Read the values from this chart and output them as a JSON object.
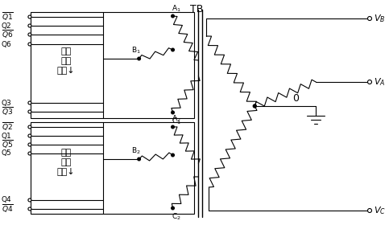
{
  "title": "TB",
  "background": "#ffffff",
  "line_color": "#000000",
  "fig_width": 4.83,
  "fig_height": 2.8,
  "dpi": 100,
  "box_text": [
    "功率",
    "放大",
    "电路↓"
  ],
  "o_label": "0"
}
